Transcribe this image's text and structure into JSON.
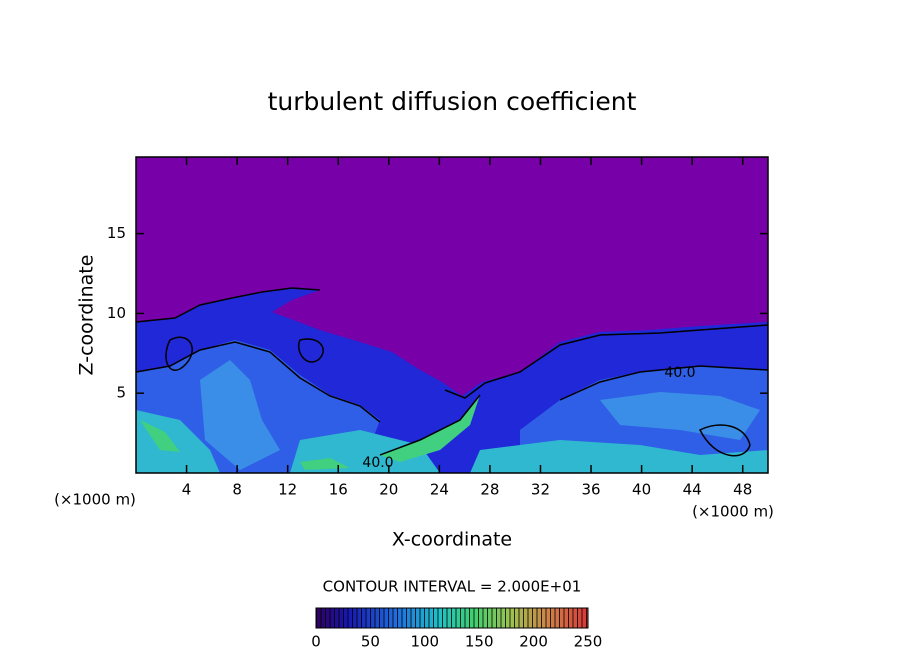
{
  "chart_data": {
    "type": "heatmap",
    "title": "turbulent diffusion coefficient",
    "x_label": "X-coordinate",
    "y_label": "Z-coordinate",
    "x_unit_label": "(×1000 m)",
    "y_unit_label": "(×1000 m)",
    "xlim": [
      0,
      50
    ],
    "xticks": [
      4,
      8,
      12,
      16,
      20,
      24,
      28,
      32,
      36,
      40,
      44,
      48
    ],
    "ylim": [
      0,
      19.8
    ],
    "yticks": [
      5,
      10,
      15
    ],
    "contour_labels": [
      "40.0",
      "40.0"
    ],
    "contour_interval_label": "CONTOUR INTERVAL = 2.000E+01",
    "colorbar": {
      "lim": [
        0,
        250
      ],
      "ticks": [
        0,
        50,
        100,
        150,
        200,
        250
      ]
    }
  }
}
